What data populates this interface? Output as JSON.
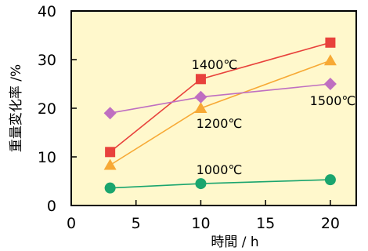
{
  "chart_data": {
    "type": "line",
    "xlabel": "時間 / h",
    "ylabel": "重量変化率 /%",
    "xlim": [
      0,
      22
    ],
    "ylim": [
      0,
      40
    ],
    "xticks": [
      0,
      5,
      10,
      15,
      20
    ],
    "yticks": [
      0,
      10,
      20,
      30,
      40
    ],
    "grid": false,
    "plot_background": "#FFF8CC",
    "series": [
      {
        "name": "1400℃",
        "label_text": "1400℃",
        "marker": "square",
        "color": "#E8423C",
        "x": [
          3,
          10,
          20
        ],
        "y": [
          11,
          26,
          33.5
        ]
      },
      {
        "name": "1200℃",
        "label_text": "1200℃",
        "marker": "triangle",
        "color": "#F7A935",
        "x": [
          3,
          10,
          20
        ],
        "y": [
          8.3,
          20,
          29.8
        ]
      },
      {
        "name": "1500℃",
        "label_text": "1500℃",
        "marker": "diamond",
        "color": "#BF6FC1",
        "x": [
          3,
          10,
          20
        ],
        "y": [
          19,
          22.3,
          25
        ]
      },
      {
        "name": "1000℃",
        "label_text": "1000℃",
        "marker": "circle",
        "color": "#1AA56E",
        "x": [
          3,
          10,
          20
        ],
        "y": [
          3.6,
          4.5,
          5.3
        ]
      }
    ]
  }
}
